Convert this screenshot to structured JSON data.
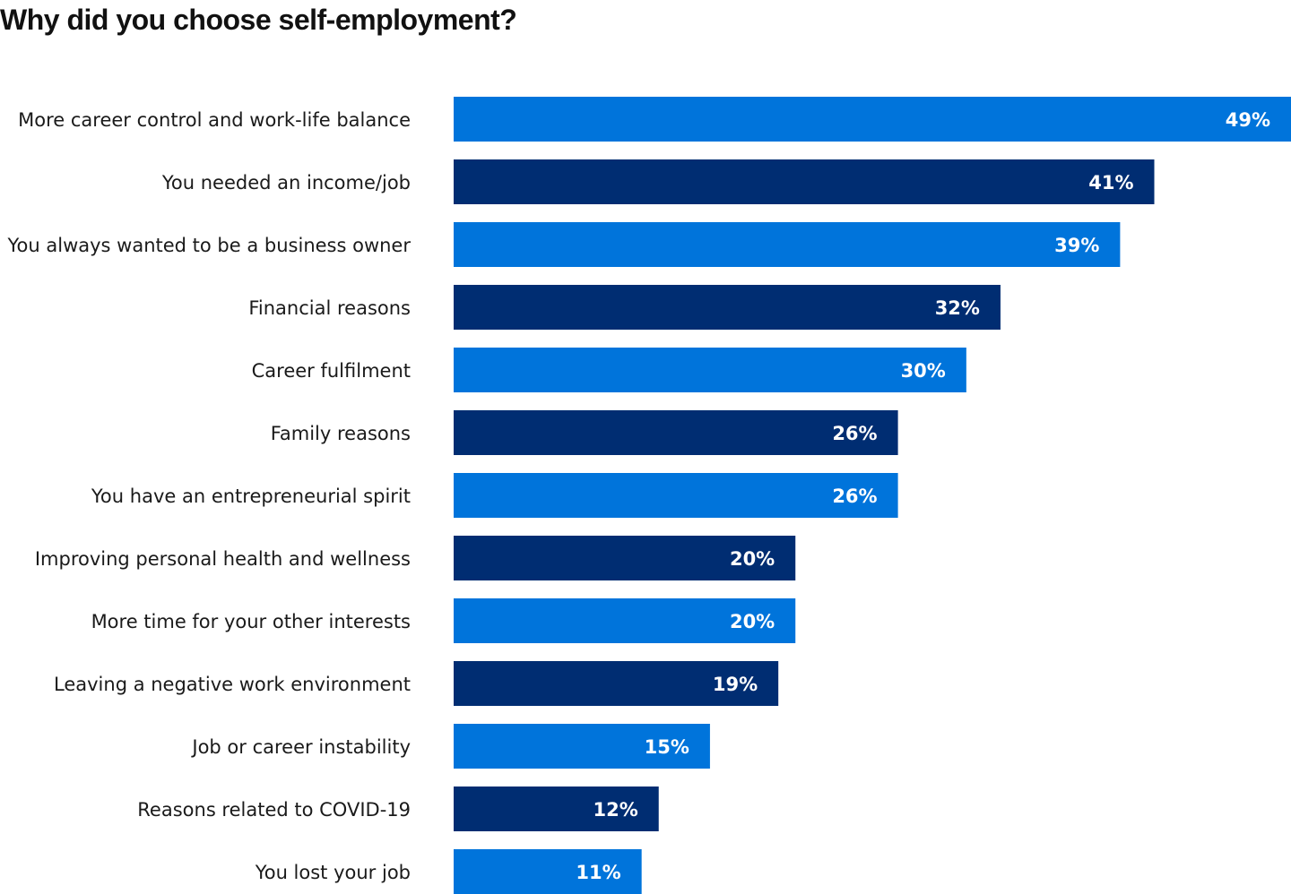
{
  "chart_data": {
    "type": "bar",
    "orientation": "horizontal",
    "title": "Why did you choose self-employment?",
    "categories": [
      "More career control and work-life balance",
      "You needed an income/job",
      "You always wanted to be a business owner",
      "Financial reasons",
      "Career fulfilment",
      "Family reasons",
      "You have an entrepreneurial spirit",
      "Improving personal health and wellness",
      "More time for your other interests",
      "Leaving a negative work environment",
      "Job or career instability",
      "Reasons related to COVID-19",
      "You lost your job"
    ],
    "values": [
      49,
      41,
      39,
      32,
      30,
      26,
      26,
      20,
      20,
      19,
      15,
      12,
      11
    ],
    "data_labels": [
      "49%",
      "41%",
      "39%",
      "32%",
      "30%",
      "26%",
      "26%",
      "20%",
      "20%",
      "19%",
      "15%",
      "12%",
      "11%"
    ],
    "unit": "%",
    "xlim": [
      0,
      49
    ],
    "grid": false,
    "legend": "none",
    "colors": [
      "#0074DB",
      "#002D72"
    ]
  }
}
